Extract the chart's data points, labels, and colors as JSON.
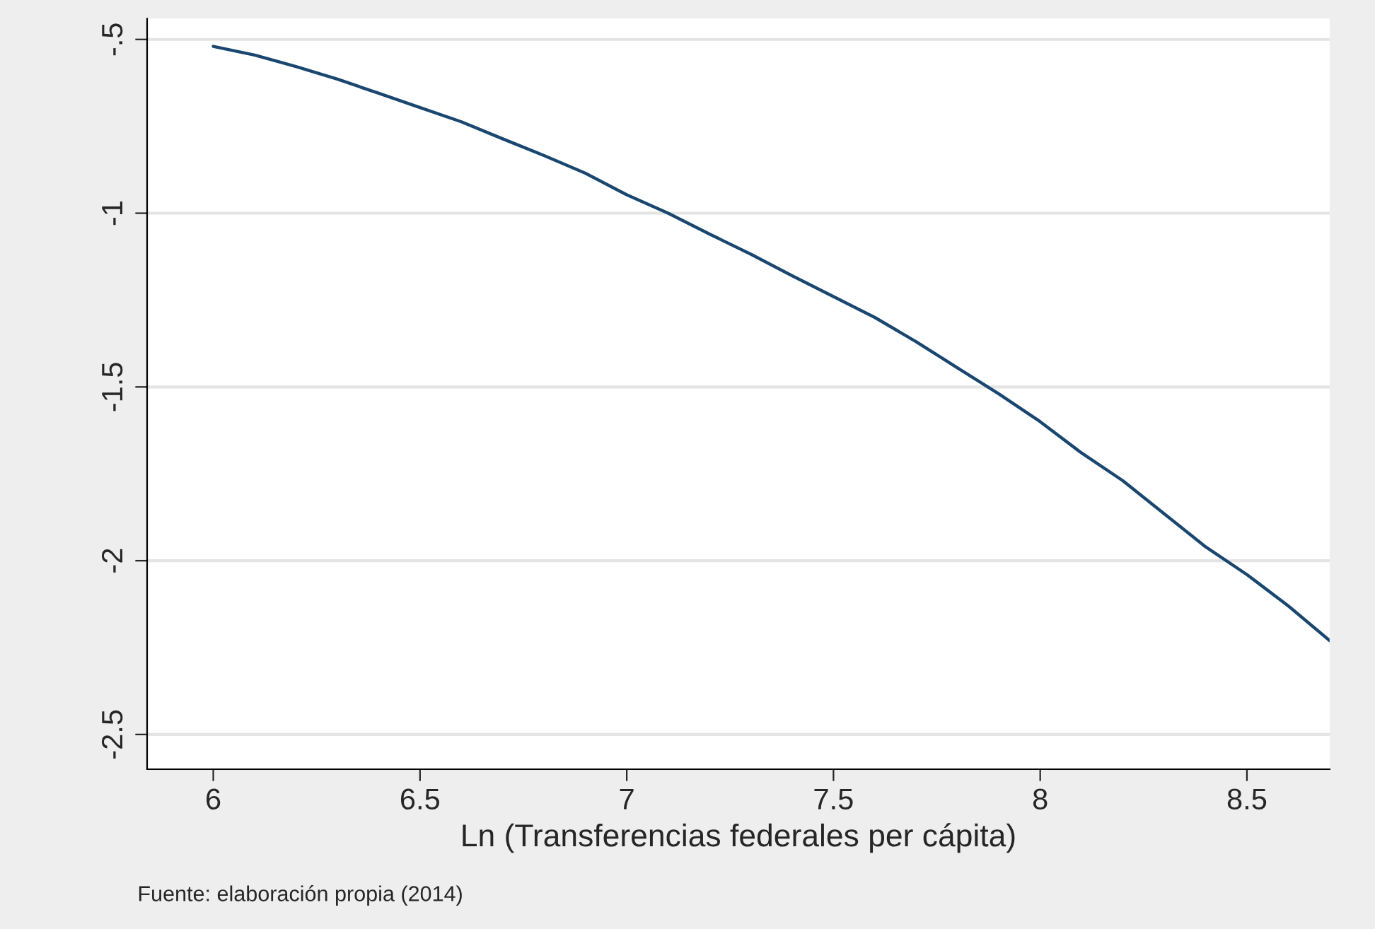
{
  "chart_data": {
    "type": "line",
    "xlabel": "Ln (Transferencias federales per cápita)",
    "x": [
      6.0,
      6.1,
      6.2,
      6.3,
      6.4,
      6.5,
      6.6,
      6.7,
      6.8,
      6.9,
      7.0,
      7.1,
      7.2,
      7.3,
      7.4,
      7.5,
      7.6,
      7.7,
      7.8,
      7.9,
      8.0,
      8.1,
      8.2,
      8.3,
      8.4,
      8.5,
      8.6,
      8.7
    ],
    "series": [
      {
        "color": "#1a476f",
        "values": [
          -0.52,
          -0.545,
          -0.578,
          -0.614,
          -0.655,
          -0.696,
          -0.737,
          -0.786,
          -0.834,
          -0.885,
          -0.947,
          -1.0,
          -1.06,
          -1.118,
          -1.18,
          -1.24,
          -1.3,
          -1.37,
          -1.445,
          -1.52,
          -1.6,
          -1.69,
          -1.77,
          -1.865,
          -1.96,
          -2.04,
          -2.13,
          -2.23
        ]
      }
    ],
    "xlim": [
      5.84,
      8.7
    ],
    "ylim": [
      -2.6,
      -0.44
    ],
    "xticks": [
      6,
      6.5,
      7,
      7.5,
      8,
      8.5
    ],
    "yticks": [
      {
        "value": -2.5,
        "label": "-2.5"
      },
      -2,
      {
        "value": -1.5,
        "label": "-1.5"
      },
      -1,
      {
        "value": -0.5,
        "label": "-.5"
      }
    ],
    "grid": "y",
    "legend": false,
    "marker": "none",
    "line_style": "solid",
    "annotations": [
      "Fuente: elaboración propia (2014)"
    ]
  }
}
